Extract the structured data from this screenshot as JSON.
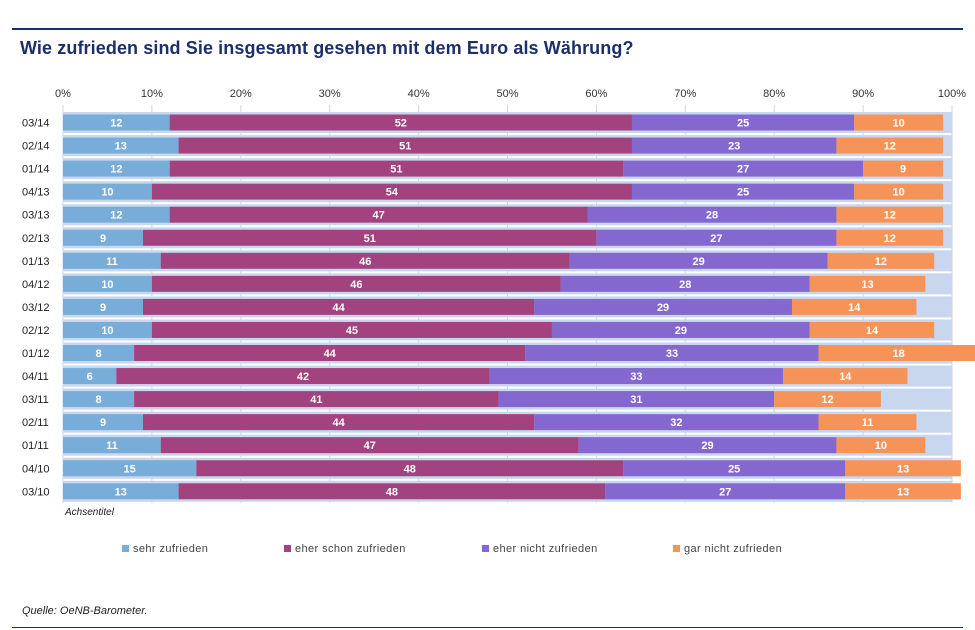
{
  "title": "Wie zufrieden sind Sie insgesamt gesehen mit dem Euro als Währung?",
  "source": "Quelle: OeNB-Barometer.",
  "colors": {
    "sehr": "#78add9",
    "eher_schon": "#a2427f",
    "eher_nicht": "#8467cf",
    "gar_nicht": "#f69359",
    "band": "#c9d7ee",
    "grid": "#cfd6e4"
  },
  "chart_data": {
    "type": "bar",
    "orientation": "horizontal",
    "stacked": true,
    "title": "Wie zufrieden sind Sie insgesamt gesehen mit dem Euro als Währung?",
    "xlabel": "",
    "ylabel": "Achsentitel",
    "xlim": [
      0,
      100
    ],
    "x_ticks": [
      "0%",
      "10%",
      "20%",
      "30%",
      "40%",
      "50%",
      "60%",
      "70%",
      "80%",
      "90%",
      "100%"
    ],
    "legend_position": "bottom",
    "grid": true,
    "categories": [
      "03/14",
      "02/14",
      "01/14",
      "04/13",
      "03/13",
      "02/13",
      "01/13",
      "04/12",
      "03/12",
      "02/12",
      "01/12",
      "04/11",
      "03/11",
      "02/11",
      "01/11",
      "04/10",
      "03/10"
    ],
    "series": [
      {
        "name": "sehr zufrieden",
        "values": [
          12,
          13,
          12,
          10,
          12,
          9,
          11,
          10,
          9,
          10,
          8,
          6,
          8,
          9,
          11,
          15,
          13
        ]
      },
      {
        "name": "eher schon zufrieden",
        "values": [
          52,
          51,
          51,
          54,
          47,
          51,
          46,
          46,
          44,
          45,
          44,
          42,
          41,
          44,
          47,
          48,
          48
        ]
      },
      {
        "name": "eher nicht zufrieden",
        "values": [
          25,
          23,
          27,
          25,
          28,
          27,
          29,
          28,
          29,
          29,
          33,
          33,
          31,
          32,
          29,
          25,
          27
        ]
      },
      {
        "name": "gar nicht zufrieden",
        "values": [
          10,
          12,
          9,
          10,
          12,
          12,
          12,
          13,
          14,
          14,
          18,
          14,
          12,
          11,
          10,
          13,
          13
        ]
      }
    ]
  }
}
